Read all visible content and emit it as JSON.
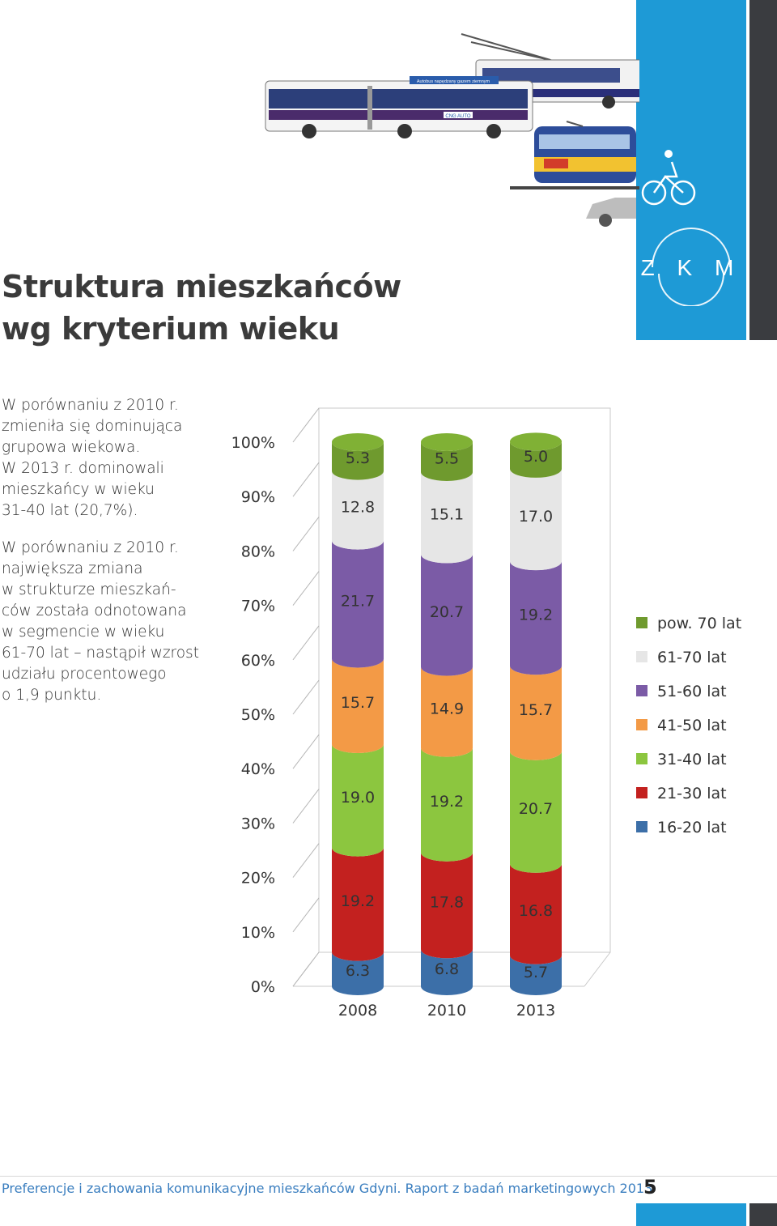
{
  "header": {
    "logo_text": "Z K M",
    "bus_banner": "Autobus napędzany gazem ziemnym",
    "cng_label": "CNG AUTO"
  },
  "title_line1": "Struktura mieszkańców",
  "title_line2": "wg kryterium wieku",
  "para1": [
    "W porównaniu z 2010 r.",
    "zmieniła się dominująca",
    "grupowa wiekowa.",
    "W 2013 r. dominowali",
    "mieszkańcy w wieku",
    "31-40 lat (20,7%)."
  ],
  "para2": [
    "W porównaniu z 2010 r.",
    "największa zmiana",
    "w strukturze mieszkań-",
    "ców została odnotowana",
    "w segmencie w wieku",
    "61-70 lat – nastąpił wzrost",
    "udziału procentowego",
    "o 1,9 punktu."
  ],
  "chart_data": {
    "type": "bar",
    "stacked": true,
    "categories": [
      "2008",
      "2010",
      "2013"
    ],
    "y_ticks": [
      "0%",
      "10%",
      "20%",
      "30%",
      "40%",
      "50%",
      "60%",
      "70%",
      "80%",
      "90%",
      "100%"
    ],
    "ylim": [
      0,
      100
    ],
    "legend_position": "right",
    "series": [
      {
        "name": "16-20 lat",
        "color": "#3c6fa8",
        "values": [
          6.3,
          6.8,
          5.7
        ]
      },
      {
        "name": "21-30 lat",
        "color": "#c3211f",
        "values": [
          19.2,
          17.8,
          16.8
        ]
      },
      {
        "name": "31-40 lat",
        "color": "#8cc63f",
        "values": [
          19.0,
          19.2,
          20.7
        ]
      },
      {
        "name": "41-50 lat",
        "color": "#f39a46",
        "values": [
          15.7,
          14.9,
          15.7
        ]
      },
      {
        "name": "51-60 lat",
        "color": "#7b5ba6",
        "values": [
          21.7,
          20.7,
          19.2
        ]
      },
      {
        "name": "61-70 lat",
        "color": "#e6e6e6",
        "values": [
          12.8,
          15.1,
          17.0
        ]
      },
      {
        "name": "pow. 70 lat",
        "color": "#6f9a2e",
        "values": [
          5.3,
          5.5,
          5.0
        ]
      }
    ]
  },
  "footer": {
    "text": "Preferencje i zachowania komunikacyjne mieszkańców Gdyni. Raport z badań marketingowych 2013",
    "page": "5"
  }
}
